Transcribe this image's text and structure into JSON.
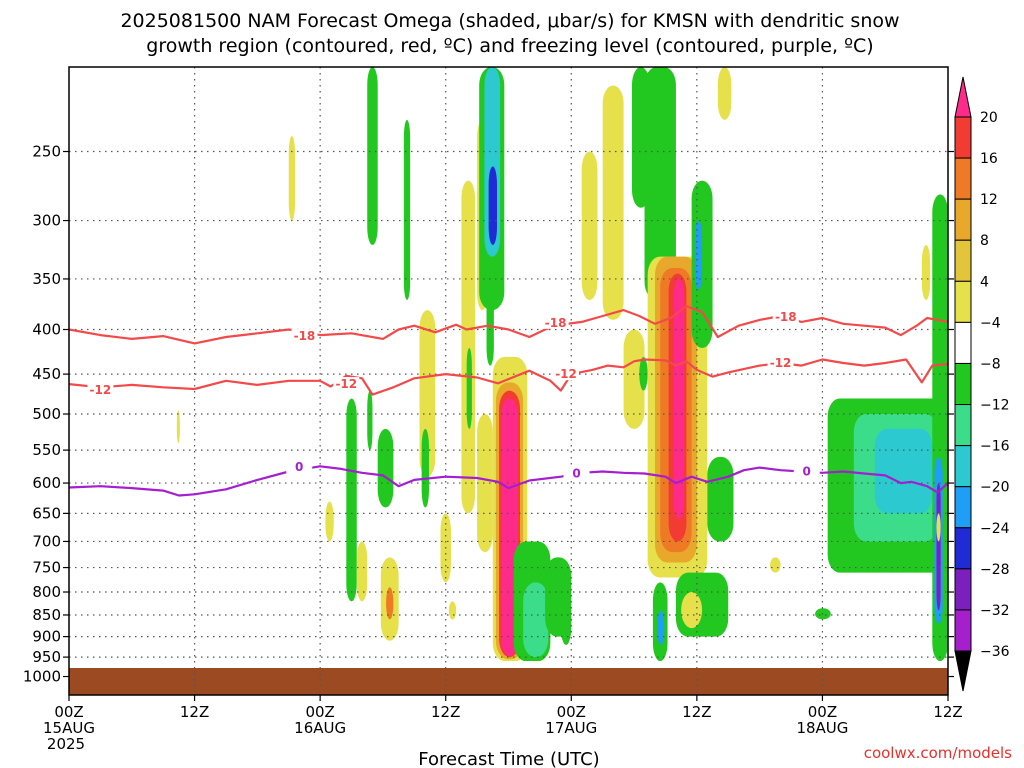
{
  "chart_data": {
    "type": "heatmap",
    "title_lines": [
      "2025081500 NAM Forecast Omega (shaded, μbar/s) for KMSN with dendritic snow",
      "growth region (contoured, red, ºC) and freezing level (contoured, purple, ºC)"
    ],
    "xlabel": "Forecast Time (UTC)",
    "ylabel": "",
    "y_scale": "log-pressure",
    "y_ticks": [
      250,
      300,
      350,
      400,
      450,
      500,
      550,
      600,
      650,
      700,
      750,
      800,
      850,
      900,
      950,
      1000
    ],
    "ylim": [
      1050,
      200
    ],
    "x_range_hours": [
      0,
      84
    ],
    "x_ticks": [
      {
        "hour": 0,
        "label": "00Z",
        "sub1": "15AUG",
        "sub2": "2025"
      },
      {
        "hour": 12,
        "label": "12Z",
        "sub1": "",
        "sub2": ""
      },
      {
        "hour": 24,
        "label": "00Z",
        "sub1": "16AUG",
        "sub2": ""
      },
      {
        "hour": 36,
        "label": "12Z",
        "sub1": "",
        "sub2": ""
      },
      {
        "hour": 48,
        "label": "00Z",
        "sub1": "17AUG",
        "sub2": ""
      },
      {
        "hour": 60,
        "label": "12Z",
        "sub1": "",
        "sub2": ""
      },
      {
        "hour": 72,
        "label": "00Z",
        "sub1": "18AUG",
        "sub2": ""
      },
      {
        "hour": 84,
        "label": "12Z",
        "sub1": "",
        "sub2": ""
      }
    ],
    "grid": true,
    "colorbar": {
      "levels": [
        20,
        16,
        12,
        8,
        4,
        -4,
        -8,
        -12,
        -16,
        -20,
        -24,
        -28,
        -32,
        -36
      ],
      "colors": [
        "#ff2a8a",
        "#f23b33",
        "#ee7a25",
        "#e8a82c",
        "#e3c53c",
        "#e6e04a",
        "#ffffff",
        "#22c71f",
        "#3bdc8a",
        "#2ccad0",
        "#1f9ef5",
        "#1f2cd6",
        "#7b1fbf",
        "#a51fcc",
        "#9a9a9a",
        "#000000"
      ],
      "tick_labels": [
        "20",
        "16",
        "12",
        "8",
        "4",
        "−4",
        "−8",
        "−12",
        "−16",
        "−20",
        "−24",
        "−28",
        "−32",
        "−36"
      ]
    },
    "ground_color": "#9c4a21",
    "contours": [
      {
        "label": "-18",
        "color": "#f24a4a",
        "points": [
          [
            0,
            400
          ],
          [
            3,
            406
          ],
          [
            6,
            410
          ],
          [
            9,
            407
          ],
          [
            12,
            415
          ],
          [
            15,
            408
          ],
          [
            18,
            404
          ],
          [
            21,
            400
          ],
          [
            24,
            406
          ],
          [
            27,
            404
          ],
          [
            30,
            410
          ],
          [
            31.5,
            400
          ],
          [
            33,
            396
          ],
          [
            35,
            403
          ],
          [
            37,
            395
          ],
          [
            38,
            400
          ],
          [
            40,
            396
          ],
          [
            42,
            400
          ],
          [
            44,
            408
          ],
          [
            45.5,
            400
          ],
          [
            47,
            395
          ],
          [
            49,
            392
          ],
          [
            51,
            386
          ],
          [
            53,
            380
          ],
          [
            54.5,
            386
          ],
          [
            56,
            394
          ],
          [
            57.5,
            388
          ],
          [
            59,
            376
          ],
          [
            60.5,
            382
          ],
          [
            62,
            408
          ],
          [
            64,
            396
          ],
          [
            66,
            390
          ],
          [
            68,
            386
          ],
          [
            70,
            392
          ],
          [
            72,
            388
          ],
          [
            74,
            394
          ],
          [
            76,
            396
          ],
          [
            78,
            398
          ],
          [
            79.5,
            406
          ],
          [
            81,
            396
          ],
          [
            82,
            388
          ],
          [
            84,
            392
          ]
        ],
        "label_positions": [
          [
            22.5,
            407
          ],
          [
            46.5,
            393
          ],
          [
            68.5,
            387
          ]
        ]
      },
      {
        "label": "-12",
        "color": "#f24a4a",
        "points": [
          [
            0,
            462
          ],
          [
            3,
            466
          ],
          [
            6,
            463
          ],
          [
            9,
            466
          ],
          [
            12,
            468
          ],
          [
            15,
            458
          ],
          [
            18,
            463
          ],
          [
            21,
            458
          ],
          [
            24,
            458
          ],
          [
            25,
            465
          ],
          [
            26.5,
            452
          ],
          [
            28,
            455
          ],
          [
            29,
            475
          ],
          [
            31,
            466
          ],
          [
            33,
            455
          ],
          [
            36,
            450
          ],
          [
            39,
            454
          ],
          [
            41,
            461
          ],
          [
            44,
            446
          ],
          [
            46,
            458
          ],
          [
            47,
            470
          ],
          [
            48,
            450
          ],
          [
            50,
            445
          ],
          [
            51.5,
            440
          ],
          [
            53,
            442
          ],
          [
            54,
            435
          ],
          [
            55,
            433
          ],
          [
            57,
            434
          ],
          [
            58,
            440
          ],
          [
            59,
            435
          ],
          [
            60,
            445
          ],
          [
            61.5,
            453
          ],
          [
            63,
            448
          ],
          [
            66,
            440
          ],
          [
            68,
            437
          ],
          [
            70,
            440
          ],
          [
            72,
            433
          ],
          [
            74,
            437
          ],
          [
            76,
            440
          ],
          [
            78,
            437
          ],
          [
            80,
            433
          ],
          [
            81.5,
            460
          ],
          [
            82.5,
            440
          ],
          [
            84,
            438
          ]
        ],
        "label_positions": [
          [
            3,
            469
          ],
          [
            26.5,
            462
          ],
          [
            47.5,
            450
          ],
          [
            68,
            437
          ]
        ]
      },
      {
        "label": "0",
        "color": "#a31fcf",
        "points": [
          [
            0,
            607
          ],
          [
            3,
            605
          ],
          [
            6,
            608
          ],
          [
            9,
            612
          ],
          [
            10.5,
            620
          ],
          [
            12,
            618
          ],
          [
            15,
            610
          ],
          [
            18,
            595
          ],
          [
            21,
            582
          ],
          [
            24,
            574
          ],
          [
            26,
            578
          ],
          [
            28,
            584
          ],
          [
            30,
            588
          ],
          [
            31.5,
            605
          ],
          [
            33,
            595
          ],
          [
            36,
            590
          ],
          [
            39,
            592
          ],
          [
            41,
            598
          ],
          [
            42,
            608
          ],
          [
            44,
            596
          ],
          [
            47,
            590
          ],
          [
            49,
            584
          ],
          [
            51,
            582
          ],
          [
            53,
            584
          ],
          [
            55,
            585
          ],
          [
            57,
            590
          ],
          [
            58,
            600
          ],
          [
            59.5,
            590
          ],
          [
            61,
            598
          ],
          [
            63,
            590
          ],
          [
            64.5,
            580
          ],
          [
            66,
            576
          ],
          [
            68,
            580
          ],
          [
            70,
            582
          ],
          [
            72,
            584
          ],
          [
            74,
            582
          ],
          [
            76,
            585
          ],
          [
            78,
            588
          ],
          [
            79.5,
            600
          ],
          [
            80.5,
            598
          ],
          [
            82,
            605
          ],
          [
            83,
            615
          ],
          [
            84,
            600
          ]
        ],
        "label_positions": [
          [
            22,
            575
          ],
          [
            48.5,
            585
          ],
          [
            70.5,
            582
          ]
        ]
      }
    ],
    "omega_regions": [
      {
        "v": 4,
        "h0": 10.3,
        "h1": 10.6,
        "p0": 495,
        "p1": 540
      },
      {
        "v": 4,
        "h0": 21.0,
        "h1": 21.6,
        "p0": 240,
        "p1": 300
      },
      {
        "v": -4,
        "h0": 28.5,
        "h1": 29.5,
        "p0": 195,
        "p1": 320
      },
      {
        "v": -4,
        "h0": 32.0,
        "h1": 32.6,
        "p0": 230,
        "p1": 370
      },
      {
        "v": 4,
        "h0": 24.5,
        "h1": 25.3,
        "p0": 630,
        "p1": 700
      },
      {
        "v": -4,
        "h0": 26.5,
        "h1": 27.5,
        "p0": 480,
        "p1": 820
      },
      {
        "v": 4,
        "h0": 27.5,
        "h1": 28.5,
        "p0": 700,
        "p1": 820
      },
      {
        "v": -4,
        "h0": 28.5,
        "h1": 29.0,
        "p0": 470,
        "p1": 550
      },
      {
        "v": -4,
        "h0": 29.5,
        "h1": 31.0,
        "p0": 520,
        "p1": 640
      },
      {
        "v": 4,
        "h0": 29.8,
        "h1": 31.5,
        "p0": 730,
        "p1": 910
      },
      {
        "v": 12,
        "h0": 30.3,
        "h1": 31.0,
        "p0": 790,
        "p1": 860
      },
      {
        "v": 4,
        "h0": 33.5,
        "h1": 35.0,
        "p0": 380,
        "p1": 590
      },
      {
        "v": -4,
        "h0": 33.7,
        "h1": 34.4,
        "p0": 520,
        "p1": 640
      },
      {
        "v": 4,
        "h0": 35.5,
        "h1": 36.5,
        "p0": 650,
        "p1": 780
      },
      {
        "v": 4,
        "h0": 36.3,
        "h1": 37.0,
        "p0": 820,
        "p1": 860
      },
      {
        "v": 4,
        "h0": 37.5,
        "h1": 38.8,
        "p0": 270,
        "p1": 650
      },
      {
        "v": -4,
        "h0": 38.0,
        "h1": 38.5,
        "p0": 420,
        "p1": 520
      },
      {
        "v": 4,
        "h0": 39.0,
        "h1": 40.0,
        "p0": 230,
        "p1": 380
      },
      {
        "v": -4,
        "h0": 39.2,
        "h1": 41.6,
        "p0": 195,
        "p1": 380
      },
      {
        "v": -12,
        "h0": 39.7,
        "h1": 41.2,
        "p0": 195,
        "p1": 330
      },
      {
        "v": -20,
        "h0": 40.1,
        "h1": 40.9,
        "p0": 260,
        "p1": 320
      },
      {
        "v": -4,
        "h0": 39.9,
        "h1": 40.6,
        "p0": 330,
        "p1": 440
      },
      {
        "v": 4,
        "h0": 39.0,
        "h1": 40.5,
        "p0": 500,
        "p1": 720
      },
      {
        "v": 4,
        "h0": 40.5,
        "h1": 43.8,
        "p0": 430,
        "p1": 960
      },
      {
        "v": 8,
        "h0": 40.8,
        "h1": 43.4,
        "p0": 460,
        "p1": 955
      },
      {
        "v": 16,
        "h0": 41.1,
        "h1": 43.1,
        "p0": 470,
        "p1": 950
      },
      {
        "v": 20,
        "h0": 41.3,
        "h1": 42.9,
        "p0": 480,
        "p1": 948
      },
      {
        "v": -4,
        "h0": 42.5,
        "h1": 46.0,
        "p0": 700,
        "p1": 960
      },
      {
        "v": -8,
        "h0": 43.4,
        "h1": 45.8,
        "p0": 780,
        "p1": 950
      },
      {
        "v": -4,
        "h0": 45.5,
        "h1": 48.0,
        "p0": 730,
        "p1": 900
      },
      {
        "v": -4,
        "h0": 47.0,
        "h1": 48.0,
        "p0": 820,
        "p1": 920
      },
      {
        "v": 4,
        "h0": 49.0,
        "h1": 50.5,
        "p0": 250,
        "p1": 370
      },
      {
        "v": 4,
        "h0": 51.0,
        "h1": 53.0,
        "p0": 210,
        "p1": 390
      },
      {
        "v": 4,
        "h0": 53.0,
        "h1": 55.0,
        "p0": 400,
        "p1": 520
      },
      {
        "v": -4,
        "h0": 53.8,
        "h1": 55.5,
        "p0": 195,
        "p1": 290
      },
      {
        "v": -4,
        "h0": 54.5,
        "h1": 55.3,
        "p0": 430,
        "p1": 470
      },
      {
        "v": -4,
        "h0": 55.0,
        "h1": 58.0,
        "p0": 195,
        "p1": 370
      },
      {
        "v": 4,
        "h0": 55.3,
        "h1": 61.0,
        "p0": 330,
        "p1": 770
      },
      {
        "v": 8,
        "h0": 56.0,
        "h1": 60.0,
        "p0": 330,
        "p1": 740
      },
      {
        "v": 12,
        "h0": 56.5,
        "h1": 59.5,
        "p0": 340,
        "p1": 720
      },
      {
        "v": 16,
        "h0": 57.3,
        "h1": 59.0,
        "p0": 345,
        "p1": 700
      },
      {
        "v": 20,
        "h0": 57.8,
        "h1": 58.8,
        "p0": 350,
        "p1": 660
      },
      {
        "v": -4,
        "h0": 59.5,
        "h1": 61.5,
        "p0": 270,
        "p1": 420
      },
      {
        "v": -16,
        "h0": 59.8,
        "h1": 60.5,
        "p0": 300,
        "p1": 360
      },
      {
        "v": -4,
        "h0": 58.0,
        "h1": 63.0,
        "p0": 760,
        "p1": 900
      },
      {
        "v": 4,
        "h0": 58.5,
        "h1": 60.5,
        "p0": 800,
        "p1": 880
      },
      {
        "v": -4,
        "h0": 61.0,
        "h1": 63.5,
        "p0": 560,
        "p1": 700
      },
      {
        "v": -4,
        "h0": 55.8,
        "h1": 57.2,
        "p0": 780,
        "p1": 960
      },
      {
        "v": -16,
        "h0": 56.2,
        "h1": 56.9,
        "p0": 840,
        "p1": 920
      },
      {
        "v": 4,
        "h0": 62.0,
        "h1": 63.3,
        "p0": 190,
        "p1": 230
      },
      {
        "v": -4,
        "h0": 72.5,
        "h1": 84.0,
        "p0": 480,
        "p1": 760
      },
      {
        "v": -8,
        "h0": 75.0,
        "h1": 83.0,
        "p0": 500,
        "p1": 700
      },
      {
        "v": -12,
        "h0": 77.0,
        "h1": 82.5,
        "p0": 520,
        "p1": 650
      },
      {
        "v": -4,
        "h0": 82.5,
        "h1": 84.0,
        "p0": 280,
        "p1": 960
      },
      {
        "v": -4,
        "h0": 71.3,
        "h1": 72.8,
        "p0": 835,
        "p1": 860
      },
      {
        "v": 4,
        "h0": 67.0,
        "h1": 68.0,
        "p0": 730,
        "p1": 760
      },
      {
        "v": 4,
        "h0": 81.5,
        "h1": 82.3,
        "p0": 320,
        "p1": 370
      },
      {
        "v": -16,
        "h0": 82.7,
        "h1": 83.5,
        "p0": 560,
        "p1": 870
      },
      {
        "v": -24,
        "h0": 82.9,
        "h1": 83.3,
        "p0": 600,
        "p1": 840
      },
      {
        "v": 4,
        "h0": 82.9,
        "h1": 83.3,
        "p0": 650,
        "p1": 700
      }
    ]
  },
  "credit": "coolwx.com/models"
}
